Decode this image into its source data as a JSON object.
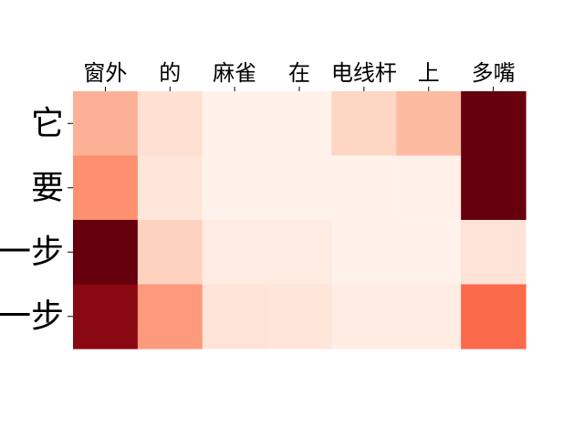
{
  "chart_data": {
    "type": "heatmap",
    "title": "",
    "xlabel": "",
    "ylabel": "",
    "x_categories": [
      "窗外",
      "的",
      "麻雀",
      "在",
      "电线杆",
      "上",
      "多嘴"
    ],
    "y_categories": [
      "它",
      "要",
      "一步",
      "一步"
    ],
    "x_tick_position": "top",
    "colormap": "Reds",
    "colorbar": false,
    "grid": false,
    "value_range": [
      0,
      1
    ],
    "values": [
      [
        0.28,
        0.12,
        0.02,
        0.02,
        0.16,
        0.25,
        1.0
      ],
      [
        0.38,
        0.09,
        0.02,
        0.02,
        0.02,
        0.03,
        1.0
      ],
      [
        1.0,
        0.17,
        0.06,
        0.06,
        0.02,
        0.02,
        0.1
      ],
      [
        0.93,
        0.35,
        0.1,
        0.09,
        0.05,
        0.05,
        0.5
      ]
    ]
  }
}
